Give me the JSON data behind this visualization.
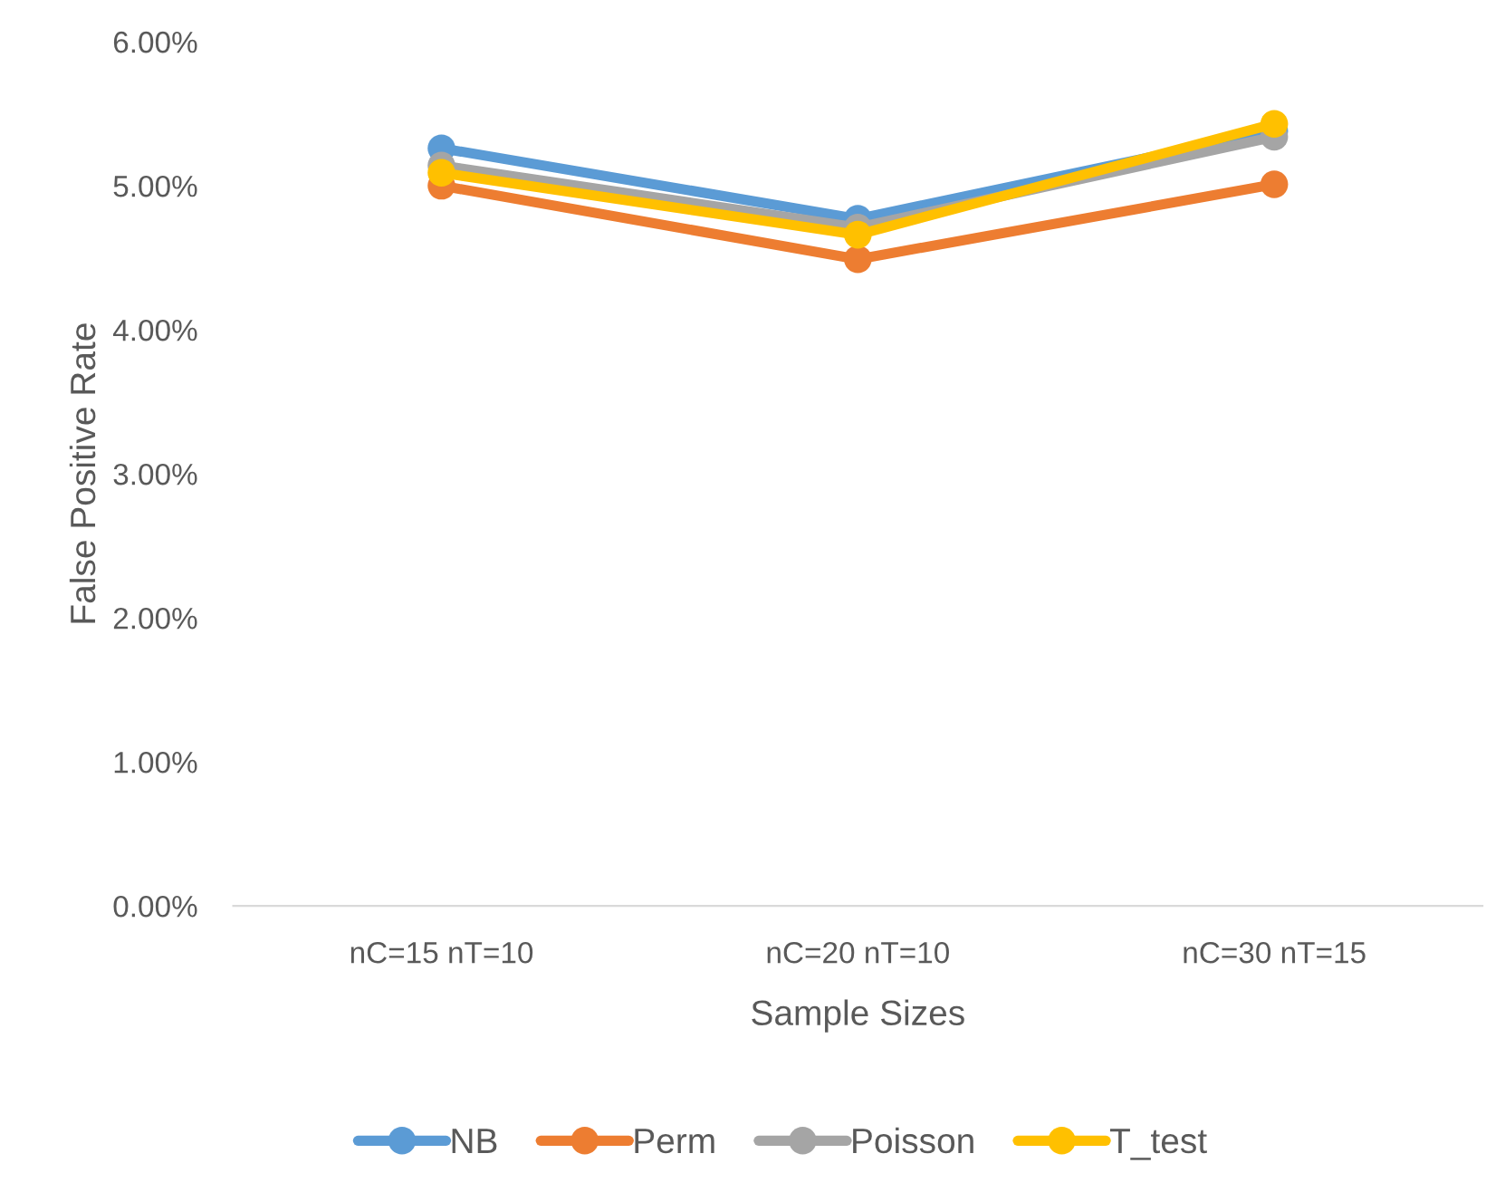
{
  "chart_data": {
    "type": "line",
    "xlabel": "Sample Sizes",
    "ylabel": "False Positive Rate",
    "categories": [
      "nC=15 nT=10",
      "nC=20 nT=10",
      "nC=30 nT=15"
    ],
    "series": [
      {
        "name": "NB",
        "color": "#5b9bd5",
        "values": [
          5.26,
          4.77,
          5.38
        ]
      },
      {
        "name": "Perm",
        "color": "#ed7d31",
        "values": [
          5.0,
          4.49,
          5.01
        ]
      },
      {
        "name": "Poisson",
        "color": "#a5a5a5",
        "values": [
          5.14,
          4.71,
          5.34
        ]
      },
      {
        "name": "T_test",
        "color": "#ffc000",
        "values": [
          5.09,
          4.66,
          5.43
        ]
      }
    ],
    "ylim": [
      0,
      6
    ],
    "yticks": [
      {
        "value": 0,
        "label": "0.00%"
      },
      {
        "value": 1,
        "label": "1.00%"
      },
      {
        "value": 2,
        "label": "2.00%"
      },
      {
        "value": 3,
        "label": "3.00%"
      },
      {
        "value": 4,
        "label": "4.00%"
      },
      {
        "value": 5,
        "label": "5.00%"
      },
      {
        "value": 6,
        "label": "6.00%"
      }
    ],
    "grid": false,
    "legend": "bottom",
    "marker": "circle",
    "line_style": "solid"
  }
}
